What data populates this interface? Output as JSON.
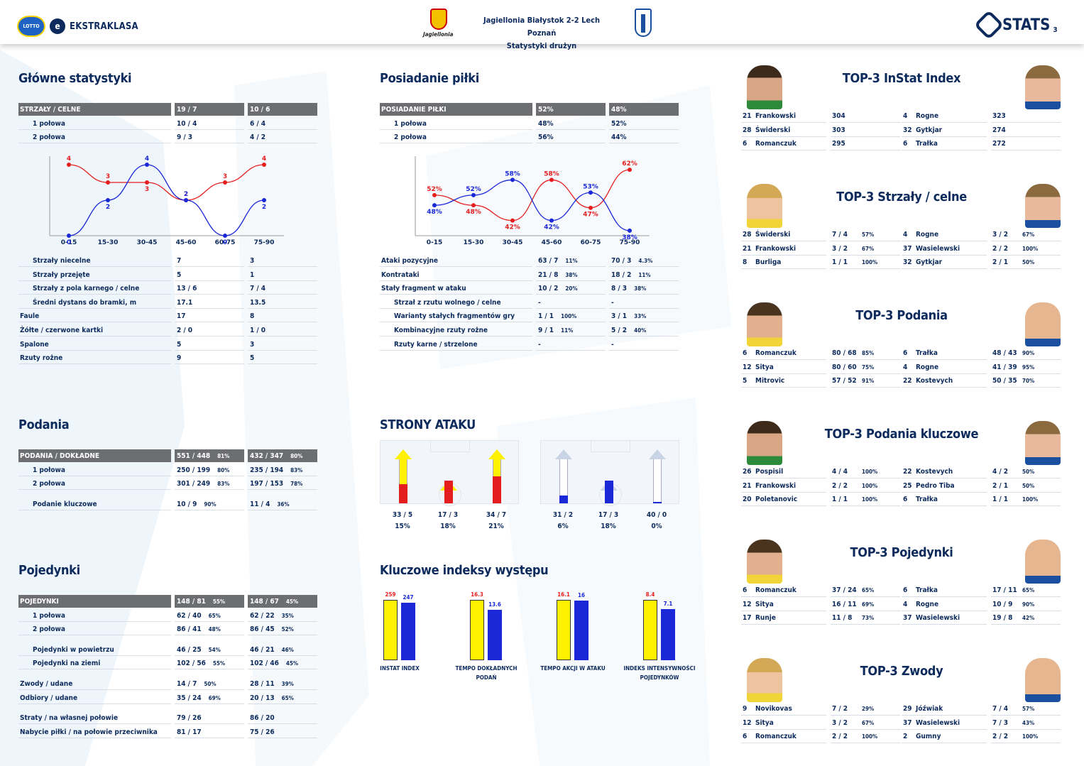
{
  "header": {
    "league_name": "EKSTRAKLASA",
    "lotto_label": "LOTTO",
    "home_club_script": "Jagiellonia",
    "match_title": "Jagiellonia Białystok 2-2  Lech Poznań",
    "page_subtitle": "Statystyki drużyn",
    "stats_brand": "STATS",
    "page_number": "3"
  },
  "colors": {
    "home": "#e41e1e",
    "away": "#1a28d8",
    "header_gray": "#6d6e71",
    "navy": "#0c2a5c",
    "home_bar": "#fff200"
  },
  "glowne": {
    "title": "Główne statystyki",
    "rows": [
      {
        "label": "STRZAŁY / CELNE",
        "home": "19 / 7",
        "away": "10 / 6",
        "header": true,
        "indent": false
      },
      {
        "label": "1 połowa",
        "home": "10 / 4",
        "away": "6 / 4",
        "indent": true
      },
      {
        "label": "2 połowa",
        "home": "9 / 3",
        "away": "4 / 2",
        "indent": true
      }
    ],
    "rows2": [
      {
        "label": "Strzały niecelne",
        "home": "7",
        "away": "3",
        "indent": true
      },
      {
        "label": "Strzały przejęte",
        "home": "5",
        "away": "1",
        "indent": true
      },
      {
        "label": "Strzały z pola karnego / celne",
        "home": "13 / 6",
        "away": "7 / 4",
        "indent": true
      },
      {
        "label": "Średni dystans do bramki, m",
        "home": "17.1",
        "away": "13.5",
        "indent": true
      },
      {
        "label": "Faule",
        "home": "17",
        "away": "8",
        "indent": false
      },
      {
        "label": "Żółte / czerwone kartki",
        "home": "2 / 0",
        "away": "1 / 0",
        "indent": false
      },
      {
        "label": "Spalone",
        "home": "5",
        "away": "3",
        "indent": false
      },
      {
        "label": "Rzuty rożne",
        "home": "9",
        "away": "5",
        "indent": false
      }
    ]
  },
  "posiadanie": {
    "title": "Posiadanie piłki",
    "rows": [
      {
        "label": "POSIADANIE PIŁKI",
        "home": "52%",
        "away": "48%",
        "header": true,
        "indent": false
      },
      {
        "label": "1 połowa",
        "home": "48%",
        "away": "52%",
        "indent": true
      },
      {
        "label": "2 połowa",
        "home": "56%",
        "away": "44%",
        "indent": true
      }
    ],
    "rows2": [
      {
        "label": "Ataki pozycyjne",
        "home": "63 / 7",
        "hp": "11%",
        "away": "70 / 3",
        "ap": "4.3%",
        "indent": false
      },
      {
        "label": "Kontrataki",
        "home": "21 / 8",
        "hp": "38%",
        "away": "18 / 2",
        "ap": "11%",
        "indent": false
      },
      {
        "label": "Stały fragment w ataku",
        "home": "10 / 2",
        "hp": "20%",
        "away": "8 / 3",
        "ap": "38%",
        "indent": false
      },
      {
        "label": "Strzał z rzutu wolnego / celne",
        "home": "-",
        "hp": "",
        "away": "-",
        "ap": "",
        "indent": true
      },
      {
        "label": "Warianty stałych fragmentów gry",
        "home": "1 / 1",
        "hp": "100%",
        "away": "3 / 1",
        "ap": "33%",
        "indent": true
      },
      {
        "label": "Kombinacyjne rzuty rożne",
        "home": "9 / 1",
        "hp": "11%",
        "away": "5 / 2",
        "ap": "40%",
        "indent": true
      },
      {
        "label": "Rzuty karne / strzelone",
        "home": "-",
        "hp": "",
        "away": "-",
        "ap": "",
        "indent": true
      }
    ]
  },
  "podania": {
    "title": "Podania",
    "rows": [
      {
        "label": "PODANIA / DOKŁADNE",
        "home": "551 / 448",
        "hp": "81%",
        "away": "432 / 347",
        "ap": "80%",
        "header": true,
        "indent": false
      },
      {
        "label": "1 połowa",
        "home": "250 / 199",
        "hp": "80%",
        "away": "235 / 194",
        "ap": "83%",
        "indent": true
      },
      {
        "label": "2 połowa",
        "home": "301 / 249",
        "hp": "83%",
        "away": "197 / 153",
        "ap": "78%",
        "indent": true
      },
      {
        "label": "",
        "home": "",
        "hp": "",
        "away": "",
        "ap": "",
        "spacer": true
      },
      {
        "label": "Podanie kluczowe",
        "home": "10 / 9",
        "hp": "90%",
        "away": "11 / 4",
        "ap": "36%",
        "indent": true
      }
    ]
  },
  "pojedynki": {
    "title": "Pojedynki",
    "rows": [
      {
        "label": "POJEDYNKI",
        "home": "148 / 81",
        "hp": "55%",
        "away": "148 / 67",
        "ap": "45%",
        "header": true,
        "indent": false
      },
      {
        "label": "1 połowa",
        "home": "62 / 40",
        "hp": "65%",
        "away": "62 / 22",
        "ap": "35%",
        "indent": true
      },
      {
        "label": "2 połowa",
        "home": "86 / 41",
        "hp": "48%",
        "away": "86 / 45",
        "ap": "52%",
        "indent": true
      },
      {
        "label": "",
        "home": "",
        "hp": "",
        "away": "",
        "ap": "",
        "spacer": true
      },
      {
        "label": "Pojedynki w powietrzu",
        "home": "46 / 25",
        "hp": "54%",
        "away": "46 / 21",
        "ap": "46%",
        "indent": true
      },
      {
        "label": "Pojedynki na ziemi",
        "home": "102 / 56",
        "hp": "55%",
        "away": "102 / 46",
        "ap": "45%",
        "indent": true
      },
      {
        "label": "",
        "home": "",
        "hp": "",
        "away": "",
        "ap": "",
        "spacer": true
      },
      {
        "label": "Zwody / udane",
        "home": "14 / 7",
        "hp": "50%",
        "away": "28 / 11",
        "ap": "39%",
        "indent": false
      },
      {
        "label": "Odbiory / udane",
        "home": "35 / 24",
        "hp": "69%",
        "away": "20 / 13",
        "ap": "65%",
        "indent": false
      },
      {
        "label": "",
        "home": "",
        "hp": "",
        "away": "",
        "ap": "",
        "spacer": true
      },
      {
        "label": "Straty / na własnej połowie",
        "home": "79 / 26",
        "hp": "",
        "away": "86 / 20",
        "ap": "",
        "indent": false
      },
      {
        "label": "Nabycie piłki / na połowie przeciwnika",
        "home": "81 / 17",
        "hp": "",
        "away": "75 / 26",
        "ap": "",
        "indent": false
      }
    ]
  },
  "strony": {
    "title": "STRONY ATAKU",
    "home": [
      {
        "value": "33 / 5",
        "pct": "15%",
        "fill": 0.15
      },
      {
        "value": "17 / 3",
        "pct": "18%",
        "fill": 0.18
      },
      {
        "value": "34 / 7",
        "pct": "21%",
        "fill": 0.21
      }
    ],
    "away": [
      {
        "value": "31 / 2",
        "pct": "6%",
        "fill": 0.06
      },
      {
        "value": "17 / 3",
        "pct": "18%",
        "fill": 0.18
      },
      {
        "value": "40 / 0",
        "pct": "0%",
        "fill": 0.0
      }
    ]
  },
  "indeksy": {
    "title": "Kluczowe indeksy występu",
    "items": [
      {
        "label": "INSTAT INDEX",
        "home": 259,
        "away": 247,
        "home_label": "259",
        "away_label": "247"
      },
      {
        "label": "TEMPO DOKŁADNYCH PODAŃ",
        "home": 16.3,
        "away": 13.6,
        "home_label": "16.3",
        "away_label": "13.6"
      },
      {
        "label": "TEMPO AKCJI W ATAKU",
        "home": 16.1,
        "away": 16,
        "home_label": "16.1",
        "away_label": "16"
      },
      {
        "label": "INDEKS INTENSYWNOŚCI POJEDYNKÓW",
        "home": 8.4,
        "away": 7.1,
        "home_label": "8.4",
        "away_label": "7.1"
      }
    ]
  },
  "top3": [
    {
      "title": "TOP-3 InStat Index",
      "home": [
        [
          "21",
          "Frankowski",
          "304",
          ""
        ],
        [
          "28",
          "Świderski",
          "303",
          ""
        ],
        [
          "6",
          "Romanczuk",
          "295",
          ""
        ]
      ],
      "away": [
        [
          "4",
          "Rogne",
          "323",
          ""
        ],
        [
          "32",
          "Gytkjar",
          "274",
          ""
        ],
        [
          "6",
          "Trałka",
          "272",
          ""
        ]
      ],
      "photo_home": "dark",
      "photo_away": "lech"
    },
    {
      "title": "TOP-3 Strzały / celne",
      "home": [
        [
          "28",
          "Świderski",
          "7 / 4",
          "57%"
        ],
        [
          "21",
          "Frankowski",
          "3 / 2",
          "67%"
        ],
        [
          "8",
          "Burliga",
          "1 / 1",
          "100%"
        ]
      ],
      "away": [
        [
          "4",
          "Rogne",
          "3 / 2",
          "67%"
        ],
        [
          "37",
          "Wasielewski",
          "2 / 2",
          "100%"
        ],
        [
          "32",
          "Gytkjar",
          "2 / 1",
          "50%"
        ]
      ],
      "photo_home": "blond",
      "photo_away": "lech"
    },
    {
      "title": "TOP-3 Podania",
      "home": [
        [
          "6",
          "Romanczuk",
          "80 / 68",
          "85%"
        ],
        [
          "12",
          "Sitya",
          "80 / 60",
          "75%"
        ],
        [
          "5",
          "Mitrovic",
          "57 / 52",
          "91%"
        ]
      ],
      "away": [
        [
          "6",
          "Trałka",
          "48 / 43",
          "90%"
        ],
        [
          "4",
          "Rogne",
          "41 / 39",
          "95%"
        ],
        [
          "22",
          "Kostevych",
          "50 / 35",
          "70%"
        ]
      ],
      "photo_home": "yel",
      "photo_away": "bald"
    },
    {
      "title": "TOP-3 Podania kluczowe",
      "home": [
        [
          "26",
          "Pospisil",
          "4 / 4",
          "100%"
        ],
        [
          "21",
          "Frankowski",
          "2 / 2",
          "100%"
        ],
        [
          "20",
          "Poletanovic",
          "1 / 1",
          "100%"
        ]
      ],
      "away": [
        [
          "22",
          "Kostevych",
          "4 / 2",
          "50%"
        ],
        [
          "25",
          "Pedro Tiba",
          "2 / 1",
          "50%"
        ],
        [
          "6",
          "Trałka",
          "1 / 1",
          "100%"
        ]
      ],
      "photo_home": "dark",
      "photo_away": "lech"
    },
    {
      "title": "TOP-3 Pojedynki",
      "home": [
        [
          "6",
          "Romanczuk",
          "37 / 24",
          "65%"
        ],
        [
          "12",
          "Sitya",
          "16 / 11",
          "69%"
        ],
        [
          "17",
          "Runje",
          "11 / 8",
          "73%"
        ]
      ],
      "away": [
        [
          "6",
          "Trałka",
          "17 / 11",
          "65%"
        ],
        [
          "4",
          "Rogne",
          "10 / 9",
          "90%"
        ],
        [
          "37",
          "Wasielewski",
          "19 / 8",
          "42%"
        ]
      ],
      "photo_home": "yel",
      "photo_away": "bald"
    },
    {
      "title": "TOP-3 Zwody",
      "home": [
        [
          "9",
          "Novikovas",
          "7 / 2",
          "29%"
        ],
        [
          "12",
          "Sitya",
          "3 / 2",
          "67%"
        ],
        [
          "6",
          "Romanczuk",
          "2 / 2",
          "100%"
        ]
      ],
      "away": [
        [
          "29",
          "Jóźwiak",
          "7 / 4",
          "57%"
        ],
        [
          "37",
          "Wasielewski",
          "7 / 3",
          "43%"
        ],
        [
          "2",
          "Gumny",
          "2 / 2",
          "100%"
        ]
      ],
      "photo_home": "blond",
      "photo_away": "bald"
    }
  ],
  "chart_data": [
    {
      "type": "line",
      "categories": [
        "0-15",
        "15-30",
        "30-45",
        "45-60",
        "60-75",
        "75-90"
      ],
      "series": [
        {
          "values": [
            4,
            3,
            3,
            2,
            3,
            4
          ],
          "labels": [
            "4",
            "3",
            "3",
            "2",
            "3",
            "4"
          ],
          "color": "#e41e1e"
        },
        {
          "values": [
            0,
            2,
            4,
            2,
            0,
            2
          ],
          "labels": [
            "0",
            "2",
            "4",
            "2",
            "0",
            "2"
          ],
          "color": "#1a28d8"
        }
      ],
      "ylim": [
        0,
        4
      ]
    },
    {
      "type": "line",
      "categories": [
        "0-15",
        "15-30",
        "30-45",
        "45-60",
        "60-75",
        "75-90"
      ],
      "series": [
        {
          "values": [
            52,
            48,
            42,
            58,
            47,
            62
          ],
          "labels": [
            "52%",
            "48%",
            "42%",
            "58%",
            "47%",
            "62%"
          ],
          "color": "#e41e1e"
        },
        {
          "values": [
            48,
            52,
            58,
            42,
            53,
            38
          ],
          "labels": [
            "48%",
            "52%",
            "58%",
            "42%",
            "53%",
            "38%"
          ],
          "color": "#1a28d8"
        }
      ],
      "ylim": [
        36,
        64
      ]
    }
  ]
}
